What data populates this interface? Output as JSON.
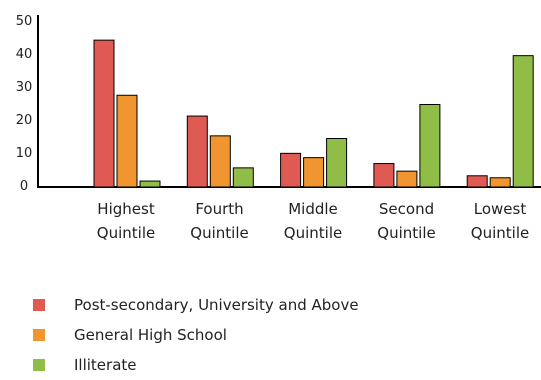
{
  "chart_data": {
    "type": "bar",
    "categories": [
      [
        "Highest",
        "Quintile"
      ],
      [
        "Fourth",
        "Quintile"
      ],
      [
        "Middle",
        "Quintile"
      ],
      [
        "Second",
        "Quintile"
      ],
      [
        "Lowest",
        "Quintile"
      ]
    ],
    "series": [
      {
        "name": "Post-secondary, University and Above",
        "color": "#e05a54",
        "values": [
          44.5,
          21.5,
          10.2,
          7.1,
          3.4
        ]
      },
      {
        "name": "General High School",
        "color": "#f19531",
        "values": [
          27.8,
          15.5,
          8.9,
          4.8,
          2.8
        ]
      },
      {
        "name": "Illiterate",
        "color": "#8fbd48",
        "values": [
          1.8,
          5.8,
          14.7,
          25.0,
          39.8
        ]
      }
    ],
    "ylim": [
      0,
      50
    ],
    "yticks": [
      "0",
      "10",
      "20",
      "30",
      "40",
      "50"
    ],
    "grid": false,
    "legend_position": "bottom-left"
  }
}
